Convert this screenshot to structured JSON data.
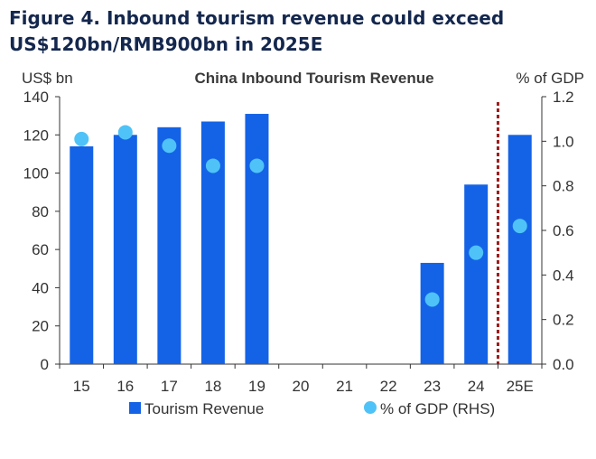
{
  "figure": {
    "title_line1": "Figure 4. Inbound tourism revenue could exceed",
    "title_line2": "US$120bn/RMB900bn in 2025E"
  },
  "colors": {
    "bar": "#1463e6",
    "dot": "#4fc3f7",
    "divider": "#9b1c1c",
    "title": "#14274e",
    "axis": "#333333"
  },
  "chart_data": {
    "type": "bar",
    "title": "China Inbound Tourism Revenue",
    "left_axis_label": "US$ bn",
    "right_axis_label": "% of GDP",
    "categories": [
      "15",
      "16",
      "17",
      "18",
      "19",
      "20",
      "21",
      "22",
      "23",
      "24",
      "25E"
    ],
    "series": [
      {
        "name": "Tourism Revenue",
        "axis": "left",
        "kind": "bar",
        "values": [
          114,
          120,
          124,
          127,
          131,
          null,
          null,
          null,
          53,
          94,
          120
        ]
      },
      {
        "name": "% of GDP (RHS)",
        "axis": "right",
        "kind": "dot",
        "values": [
          1.01,
          1.04,
          0.98,
          0.89,
          0.89,
          null,
          null,
          null,
          0.29,
          0.5,
          0.62
        ]
      }
    ],
    "ylim_left": [
      0,
      140
    ],
    "yticks_left": [
      "0",
      "20",
      "40",
      "60",
      "80",
      "100",
      "120",
      "140"
    ],
    "ylim_right": [
      0,
      1.2
    ],
    "yticks_right": [
      "0.0",
      "0.2",
      "0.4",
      "0.6",
      "0.8",
      "1.0",
      "1.2"
    ],
    "forecast_divider_between": [
      "24",
      "25E"
    ],
    "legend": [
      "Tourism Revenue",
      "% of GDP (RHS)"
    ]
  }
}
